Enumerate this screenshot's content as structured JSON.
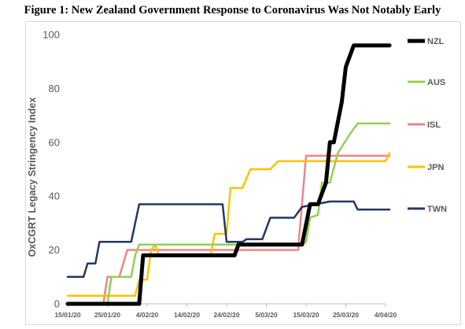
{
  "chart_data": {
    "type": "line",
    "title": "Figure 1: New Zealand Government Response to Coronavirus Was Not Notably Early",
    "ylabel": "OxCGRT Legacy Stringency Index",
    "xlabel": "",
    "ylim": [
      0,
      100
    ],
    "yticks": [
      0,
      20,
      40,
      60,
      80,
      100
    ],
    "x_tick_labels": [
      "15/01/20",
      "25/01/20",
      "4/02/20",
      "14/02/20",
      "24/02/20",
      "5/03/20",
      "15/03/20",
      "25/03/20",
      "4/04/20"
    ],
    "grid": false,
    "legend_position": "right",
    "series": [
      {
        "name": "NZL",
        "color": "#000000",
        "points": [
          [
            "15/01/20",
            0
          ],
          [
            "02/02/20",
            0
          ],
          [
            "03/02/20",
            18
          ],
          [
            "26/02/20",
            18
          ],
          [
            "27/02/20",
            22
          ],
          [
            "14/03/20",
            22
          ],
          [
            "16/03/20",
            37
          ],
          [
            "18/03/20",
            37
          ],
          [
            "20/03/20",
            45
          ],
          [
            "21/03/20",
            60
          ],
          [
            "22/03/20",
            60
          ],
          [
            "24/03/20",
            75
          ],
          [
            "25/03/20",
            88
          ],
          [
            "27/03/20",
            96
          ],
          [
            "05/04/20",
            96
          ]
        ]
      },
      {
        "name": "AUS",
        "color": "#92d050",
        "points": [
          [
            "15/01/20",
            0
          ],
          [
            "25/01/20",
            0
          ],
          [
            "26/01/20",
            10
          ],
          [
            "31/01/20",
            10
          ],
          [
            "01/02/20",
            18
          ],
          [
            "02/02/20",
            22
          ],
          [
            "14/03/20",
            22
          ],
          [
            "15/03/20",
            23
          ],
          [
            "16/03/20",
            32
          ],
          [
            "18/03/20",
            33
          ],
          [
            "19/03/20",
            45
          ],
          [
            "21/03/20",
            45
          ],
          [
            "23/03/20",
            56
          ],
          [
            "26/03/20",
            63
          ],
          [
            "28/03/20",
            67
          ],
          [
            "05/04/20",
            67
          ]
        ]
      },
      {
        "name": "ISL",
        "color": "#f28482",
        "points": [
          [
            "15/01/20",
            0
          ],
          [
            "24/01/20",
            0
          ],
          [
            "25/01/20",
            10
          ],
          [
            "28/01/20",
            10
          ],
          [
            "30/01/20",
            20
          ],
          [
            "13/03/20",
            20
          ],
          [
            "15/03/20",
            55
          ],
          [
            "05/04/20",
            55
          ]
        ]
      },
      {
        "name": "JPN",
        "color": "#ffc000",
        "points": [
          [
            "15/01/20",
            3
          ],
          [
            "01/02/20",
            3
          ],
          [
            "02/02/20",
            9
          ],
          [
            "04/02/20",
            9
          ],
          [
            "05/02/20",
            20
          ],
          [
            "06/02/20",
            22
          ],
          [
            "07/02/20",
            18
          ],
          [
            "20/02/20",
            18
          ],
          [
            "21/02/20",
            26
          ],
          [
            "24/02/20",
            26
          ],
          [
            "25/02/20",
            43
          ],
          [
            "28/02/20",
            43
          ],
          [
            "01/03/20",
            50
          ],
          [
            "06/03/20",
            50
          ],
          [
            "08/03/20",
            53
          ],
          [
            "04/04/20",
            53
          ],
          [
            "05/04/20",
            56
          ]
        ]
      },
      {
        "name": "TWN",
        "color": "#203864",
        "points": [
          [
            "15/01/20",
            10
          ],
          [
            "19/01/20",
            10
          ],
          [
            "20/01/20",
            15
          ],
          [
            "22/01/20",
            15
          ],
          [
            "23/01/20",
            23
          ],
          [
            "31/01/20",
            23
          ],
          [
            "02/02/20",
            37
          ],
          [
            "23/02/20",
            37
          ],
          [
            "24/02/20",
            23
          ],
          [
            "28/02/20",
            23
          ],
          [
            "29/02/20",
            24
          ],
          [
            "04/03/20",
            24
          ],
          [
            "06/03/20",
            32
          ],
          [
            "12/03/20",
            32
          ],
          [
            "14/03/20",
            36
          ],
          [
            "21/03/20",
            38
          ],
          [
            "27/03/20",
            38
          ],
          [
            "28/03/20",
            35
          ],
          [
            "05/04/20",
            35
          ]
        ]
      }
    ]
  }
}
